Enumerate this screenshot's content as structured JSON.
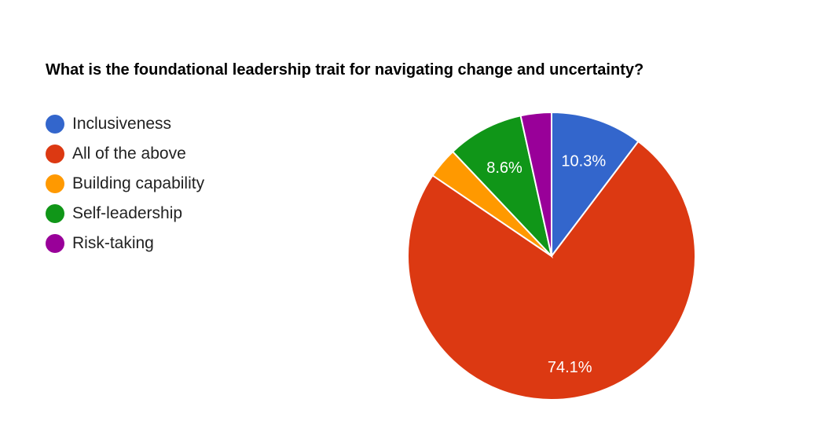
{
  "chart_data": {
    "type": "pie",
    "title": "What is the foundational leadership trait for navigating change and uncertainty?",
    "categories": [
      "Inclusiveness",
      "All of the above",
      "Building capability",
      "Self-leadership",
      "Risk-taking"
    ],
    "values": [
      10.3,
      74.1,
      3.45,
      8.6,
      3.45
    ],
    "colors": [
      "#3366cc",
      "#dc3912",
      "#ff9900",
      "#109618",
      "#990099"
    ],
    "data_labels": [
      "10.3%",
      "74.1%",
      "",
      "8.6%",
      ""
    ],
    "legend_position": "left",
    "start_angle_deg": 0,
    "direction": "clockwise"
  },
  "legend": {
    "items": [
      {
        "label": "Inclusiveness",
        "color": "#3366cc"
      },
      {
        "label": "All of the above",
        "color": "#dc3912"
      },
      {
        "label": "Building capability",
        "color": "#ff9900"
      },
      {
        "label": "Self-leadership",
        "color": "#109618"
      },
      {
        "label": "Risk-taking",
        "color": "#990099"
      }
    ]
  }
}
